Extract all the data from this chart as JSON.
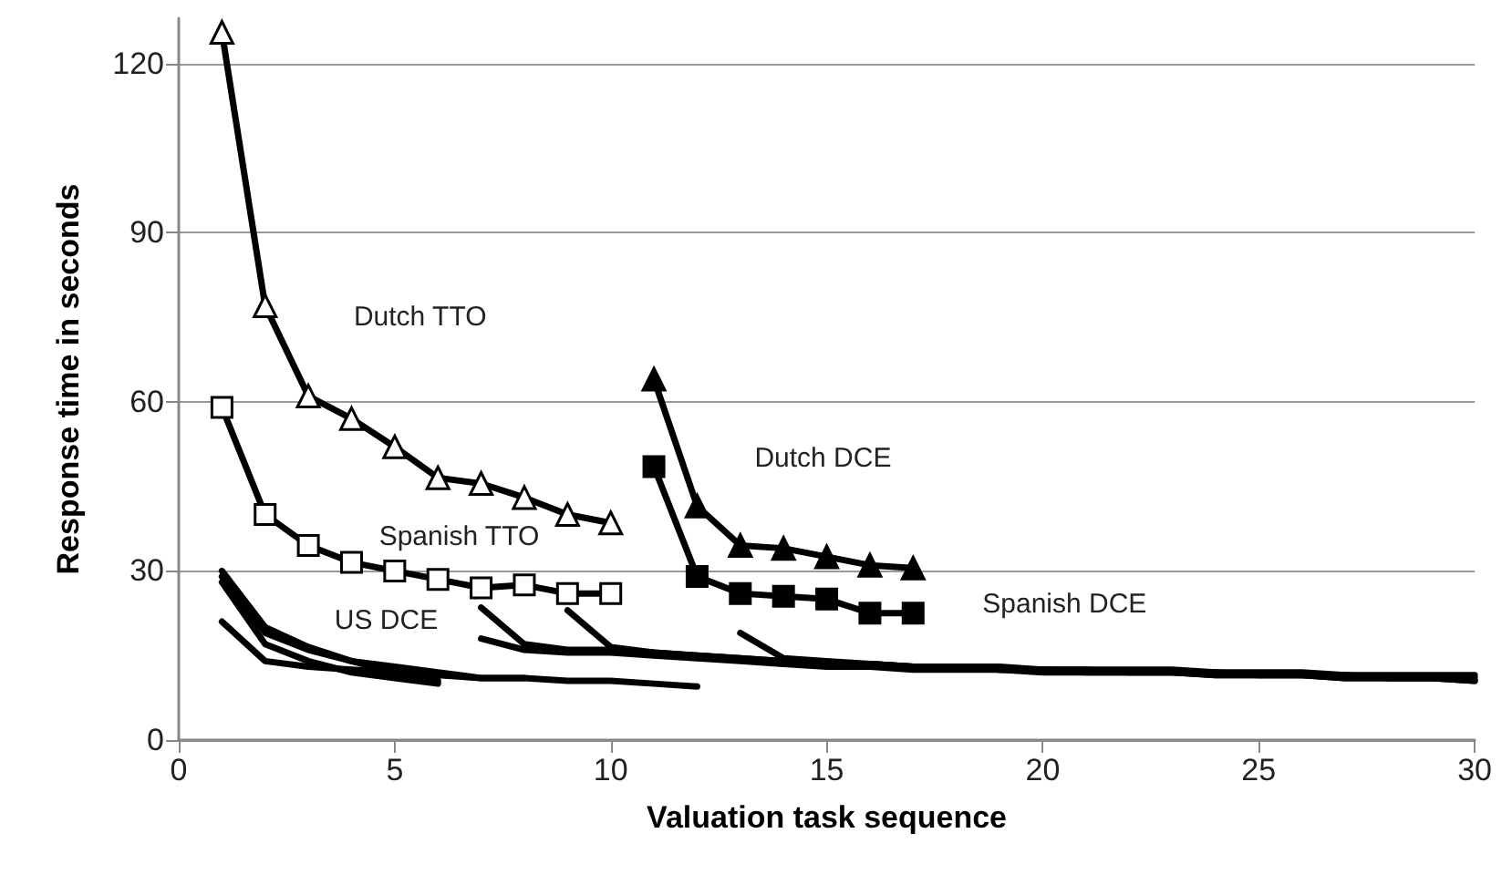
{
  "chart_data": {
    "type": "line",
    "xlabel": "Valuation task sequence",
    "ylabel": "Response time in seconds",
    "xlim": [
      0,
      30
    ],
    "xticks": [
      0,
      5,
      10,
      15,
      20,
      25,
      30
    ],
    "ylim": [
      0,
      128
    ],
    "yticks": [
      0,
      30,
      60,
      90,
      120
    ],
    "grid": "y",
    "line_style": "solid",
    "series": [
      {
        "name": "Dutch TTO",
        "color": "#000000",
        "marker": "triangle",
        "colors": [
          "#ffffff",
          "#ffffff",
          "#ffffff",
          "#ffffff",
          "#ffffff",
          "#ffffff",
          "#ffffff",
          "#ffffff",
          "#ffffff",
          "#ffffff"
        ],
        "x": [
          1,
          2,
          3,
          4,
          5,
          6,
          7,
          8,
          9,
          10
        ],
        "values": [
          125.5,
          77,
          61,
          57,
          52,
          46.5,
          45.5,
          43,
          40,
          38.5
        ]
      },
      {
        "name": "Spanish TTO",
        "color": "#000000",
        "marker": "square",
        "colors": [
          "#ffffff",
          "#ffffff",
          "#ffffff",
          "#ffffff",
          "#ffffff",
          "#ffffff",
          "#ffffff",
          "#ffffff",
          "#ffffff",
          "#ffffff"
        ],
        "x": [
          1,
          2,
          3,
          4,
          5,
          6,
          7,
          8,
          9,
          10
        ],
        "values": [
          59,
          40,
          34.5,
          31.5,
          30,
          28.5,
          27,
          27.5,
          26,
          26
        ]
      },
      {
        "name": "Dutch DCE",
        "color": "#000000",
        "marker": "triangle",
        "x": [
          11,
          12,
          13,
          14,
          15,
          16,
          17
        ],
        "values": [
          64,
          41.5,
          34.5,
          34,
          32.5,
          31,
          30.5
        ]
      },
      {
        "name": "Spanish DCE",
        "color": "#000000",
        "marker": "square",
        "x": [
          11,
          12,
          13,
          14,
          15,
          16,
          17
        ],
        "values": [
          48.5,
          29,
          26,
          25.5,
          25,
          22.5,
          22.5
        ]
      },
      {
        "name": "US DCE",
        "color": "#000000",
        "marker": "none",
        "x": [
          1,
          2,
          3,
          4,
          5,
          6
        ],
        "values": [
          30,
          20,
          16.5,
          14,
          12,
          10.5
        ]
      },
      {
        "color": "#000000",
        "marker": "none",
        "x": [
          1,
          2,
          3,
          4,
          5,
          6
        ],
        "values": [
          28,
          17,
          14,
          12,
          11,
          10
        ]
      },
      {
        "color": "#000000",
        "marker": "none",
        "x": [
          1,
          2,
          3,
          4,
          5,
          6,
          7,
          8
        ],
        "values": [
          29,
          19,
          16,
          14,
          13,
          12,
          11,
          11
        ]
      },
      {
        "color": "#000000",
        "marker": "none",
        "x": [
          1,
          2,
          3,
          4,
          5,
          6,
          7,
          8,
          9,
          10,
          11,
          12
        ],
        "values": [
          21,
          14,
          13,
          12.5,
          12,
          11.5,
          11,
          11,
          10.5,
          10.5,
          10,
          9.5
        ]
      },
      {
        "color": "#000000",
        "marker": "none",
        "x": [
          7,
          8,
          9,
          10,
          11,
          12,
          13,
          14,
          15,
          16,
          17,
          18,
          19,
          20,
          21,
          22,
          23,
          24,
          25,
          26,
          27,
          28,
          29,
          30
        ],
        "values": [
          18,
          16,
          15.5,
          15.5,
          15,
          14.5,
          14,
          13.5,
          13,
          13,
          12.5,
          12.5,
          12.5,
          12,
          12,
          12,
          12,
          11.5,
          11.5,
          11.5,
          11,
          11,
          11,
          11
        ]
      },
      {
        "color": "#000000",
        "marker": "none",
        "x": [
          7,
          8,
          9,
          10,
          11,
          12,
          13,
          14,
          15,
          16,
          17,
          18,
          19,
          20,
          21,
          22,
          23,
          24,
          25,
          26,
          27,
          28,
          29,
          30
        ],
        "values": [
          23.5,
          17,
          16,
          16,
          15.5,
          15,
          14.5,
          14,
          13.5,
          13.5,
          13,
          13,
          13,
          12.5,
          12.5,
          12.5,
          12.5,
          12,
          12,
          12,
          11.5,
          11.5,
          11.5,
          11.5
        ]
      },
      {
        "color": "#000000",
        "marker": "none",
        "x": [
          9,
          10,
          11,
          12,
          13,
          14,
          15,
          16,
          17,
          18,
          19,
          20,
          21,
          22,
          23,
          24,
          25,
          26,
          27,
          28,
          29,
          30
        ],
        "values": [
          23,
          16.5,
          15.5,
          15,
          14.5,
          14,
          13.5,
          13.5,
          13,
          13,
          12.5,
          12.5,
          12.5,
          12,
          12,
          12,
          11.5,
          11.5,
          11.5,
          11,
          11,
          10.5
        ]
      },
      {
        "color": "#000000",
        "marker": "none",
        "x": [
          13,
          14,
          15,
          16,
          17,
          18,
          19,
          20,
          21,
          22,
          23,
          24,
          25,
          26,
          27,
          28,
          29,
          30
        ],
        "values": [
          19,
          14.5,
          14,
          13.5,
          13,
          13,
          12.5,
          12.5,
          12,
          12,
          12,
          11.5,
          11.5,
          11.5,
          11,
          11,
          11,
          10.5
        ]
      }
    ]
  }
}
